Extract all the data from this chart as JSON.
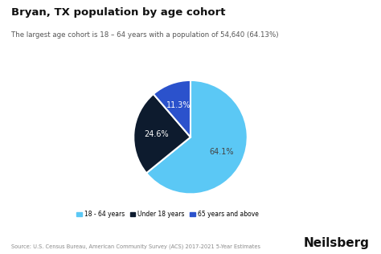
{
  "title": "Bryan, TX population by age cohort",
  "subtitle": "The largest age cohort is 18 – 64 years with a population of 54,640 (64.13%)",
  "slices": [
    64.13,
    24.57,
    11.3
  ],
  "labels": [
    "64.1%",
    "24.6%",
    "11.3%"
  ],
  "colors": [
    "#5bc8f5",
    "#0d1b2e",
    "#2b52cc"
  ],
  "legend_labels": [
    "18 - 64 years",
    "Under 18 years",
    "65 years and above"
  ],
  "legend_colors": [
    "#5bc8f5",
    "#0d1b2e",
    "#2b52cc"
  ],
  "source_text": "Source: U.S. Census Bureau, American Community Survey (ACS) 2017-2021 5-Year Estimates",
  "brand_text": "Neilsberg",
  "background_color": "#ffffff",
  "label_fontcolors": [
    "#444444",
    "#ffffff",
    "#ffffff"
  ],
  "title_fontsize": 9.5,
  "subtitle_fontsize": 6.2,
  "label_fontsize": 7.0
}
